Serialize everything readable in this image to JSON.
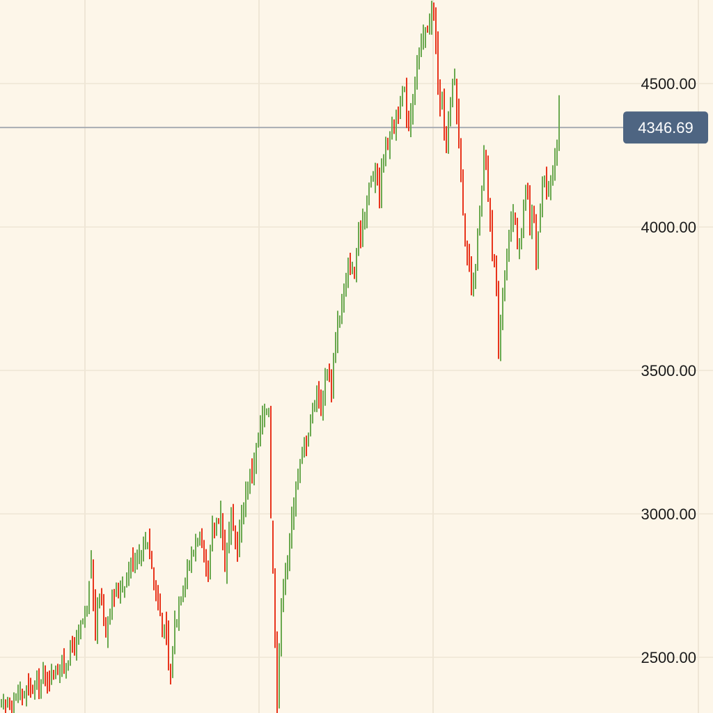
{
  "chart_data": {
    "type": "candlestick",
    "ylim": [
      2300,
      4800
    ],
    "y_ticks": [
      {
        "value": 4500,
        "label": "4500.00"
      },
      {
        "value": 4000,
        "label": "4000.00"
      },
      {
        "value": 3500,
        "label": "3500.00"
      },
      {
        "value": 3000,
        "label": "3000.00"
      },
      {
        "value": 2500,
        "label": "2500.00"
      }
    ],
    "current_price": {
      "value": 4346.69,
      "label": "4346.69"
    },
    "grid": true,
    "colors": {
      "background": "#fdf6e9",
      "up": "#6aa84f",
      "down": "#e8341c",
      "grid": "#efe6d6",
      "price_line": "#a9adb3",
      "price_tag": "#4e6582"
    },
    "close_path": [
      [
        0,
        2330
      ],
      [
        30,
        2370
      ],
      [
        60,
        2420
      ],
      [
        90,
        2470
      ],
      [
        110,
        2560
      ],
      [
        125,
        2650
      ],
      [
        131,
        2850
      ],
      [
        136,
        2560
      ],
      [
        142,
        2740
      ],
      [
        152,
        2600
      ],
      [
        160,
        2700
      ],
      [
        180,
        2770
      ],
      [
        190,
        2840
      ],
      [
        200,
        2870
      ],
      [
        213,
        2920
      ],
      [
        220,
        2770
      ],
      [
        230,
        2650
      ],
      [
        240,
        2550
      ],
      [
        244,
        2380
      ],
      [
        250,
        2600
      ],
      [
        262,
        2760
      ],
      [
        275,
        2850
      ],
      [
        285,
        2940
      ],
      [
        293,
        2830
      ],
      [
        298,
        2760
      ],
      [
        305,
        2940
      ],
      [
        318,
        3010
      ],
      [
        322,
        2810
      ],
      [
        332,
        2990
      ],
      [
        340,
        2860
      ],
      [
        350,
        3040
      ],
      [
        358,
        3120
      ],
      [
        366,
        3200
      ],
      [
        376,
        3320
      ],
      [
        386,
        3380
      ],
      [
        389,
        3000
      ],
      [
        394,
        2650
      ],
      [
        398,
        2350
      ],
      [
        403,
        2650
      ],
      [
        408,
        2800
      ],
      [
        414,
        2850
      ],
      [
        420,
        3000
      ],
      [
        428,
        3150
      ],
      [
        436,
        3220
      ],
      [
        446,
        3330
      ],
      [
        456,
        3450
      ],
      [
        462,
        3340
      ],
      [
        468,
        3520
      ],
      [
        476,
        3450
      ],
      [
        484,
        3660
      ],
      [
        494,
        3760
      ],
      [
        502,
        3880
      ],
      [
        508,
        3820
      ],
      [
        514,
        3940
      ],
      [
        522,
        4040
      ],
      [
        532,
        4160
      ],
      [
        541,
        4200
      ],
      [
        545,
        4120
      ],
      [
        550,
        4240
      ],
      [
        560,
        4330
      ],
      [
        570,
        4390
      ],
      [
        580,
        4470
      ],
      [
        587,
        4350
      ],
      [
        594,
        4490
      ],
      [
        603,
        4620
      ],
      [
        611,
        4680
      ],
      [
        617,
        4720
      ],
      [
        622,
        4760
      ],
      [
        626,
        4630
      ],
      [
        631,
        4400
      ],
      [
        636,
        4450
      ],
      [
        640,
        4260
      ],
      [
        646,
        4410
      ],
      [
        652,
        4550
      ],
      [
        658,
        4340
      ],
      [
        663,
        4170
      ],
      [
        668,
        3920
      ],
      [
        673,
        3850
      ],
      [
        679,
        3750
      ],
      [
        684,
        3900
      ],
      [
        690,
        4060
      ],
      [
        696,
        4270
      ],
      [
        701,
        4100
      ],
      [
        706,
        3950
      ],
      [
        712,
        3820
      ],
      [
        716,
        3570
      ],
      [
        720,
        3760
      ],
      [
        726,
        3860
      ],
      [
        732,
        3960
      ],
      [
        738,
        4060
      ],
      [
        744,
        3920
      ],
      [
        750,
        4010
      ],
      [
        756,
        4150
      ],
      [
        761,
        4000
      ],
      [
        766,
        4080
      ],
      [
        770,
        3860
      ],
      [
        774,
        4010
      ],
      [
        780,
        4160
      ],
      [
        786,
        4140
      ],
      [
        790,
        4120
      ],
      [
        795,
        4220
      ],
      [
        799,
        4300
      ],
      [
        803,
        4400
      ]
    ]
  }
}
